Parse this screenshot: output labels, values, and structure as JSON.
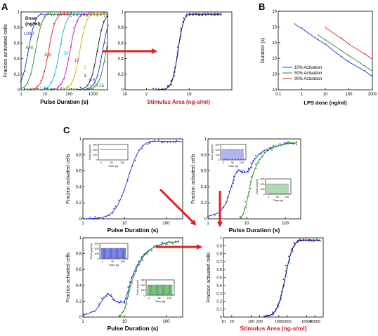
{
  "panel_letters": [
    "A",
    "B",
    "C"
  ],
  "colors": {
    "blue": "#2030c8",
    "green": "#20902a",
    "red": "#e02020",
    "cyan": "#10b8c8",
    "magenta": "#c010c8",
    "yellow": "#c8b400",
    "black": "#111111",
    "navy": "#000080",
    "arrow": "#e02020",
    "axis_red_label": "#d01818"
  },
  "chart_data": [
    {
      "id": "A1",
      "type": "scatter",
      "title": "",
      "xlabel": "Pulse Duration (s)",
      "ylabel": "Fraction activated cells",
      "xscale": "log",
      "xlim": [
        1,
        4000
      ],
      "ylim": [
        0,
        1
      ],
      "xticks": [
        1,
        10,
        100,
        1000
      ],
      "xtick_labels": [
        "1",
        "10",
        "100",
        "1000"
      ],
      "yticks": [
        0,
        0.2,
        0.4,
        0.6,
        0.8,
        1
      ],
      "ytick_labels": [
        "0",
        "0.2",
        "0.4",
        "0.6",
        "0.8",
        "1"
      ],
      "legend_title": "Dose\n(ng/ml)",
      "legend_title_lines": [
        "Dose",
        "(ng/ml)"
      ],
      "series": [
        {
          "name": "1000",
          "color": "#2030c8",
          "x50": 2,
          "slope": 3
        },
        {
          "name": "500",
          "color": "#20902a",
          "x50": 4,
          "slope": 3
        },
        {
          "name": "100",
          "color": "#e02020",
          "x50": 14,
          "slope": 3
        },
        {
          "name": "50",
          "color": "#10b8c8",
          "x50": 40,
          "slope": 3
        },
        {
          "name": "10",
          "color": "#c010c8",
          "x50": 110,
          "slope": 3
        },
        {
          "name": "5",
          "color": "#c8b400",
          "x50": 280,
          "slope": 3
        },
        {
          "name": "1",
          "color": "#111111",
          "x50": 1500,
          "slope": 3
        },
        {
          "name": "0.5",
          "color": "#2030c8",
          "x50": 2500,
          "slope": 3
        },
        {
          "name": "0.25",
          "color": "#20902a",
          "x50": 3500,
          "slope": 3
        }
      ]
    },
    {
      "id": "A2",
      "type": "scatter",
      "title": "",
      "xlabel": "Stimulus Area (ng-s/ml)",
      "ylabel": "",
      "xscale": "log",
      "xlim": [
        10,
        1000000
      ],
      "ylim": [
        0,
        1
      ],
      "xticks": [
        10,
        100,
        10000
      ],
      "xtick_labels": [
        "10",
        "2",
        "10"
      ],
      "yticks": [
        0,
        0.2,
        0.4,
        0.6,
        0.8,
        1
      ],
      "ytick_labels": [
        "0",
        "0.2",
        "0.4",
        "0.6",
        "0.8",
        "1"
      ],
      "collapsed_x50": 3000,
      "collapsed_slope": 3.2
    },
    {
      "id": "B",
      "type": "line",
      "title": "",
      "xlabel": "LPS dose (ng/ml)",
      "ylabel": "Duration (s)",
      "xscale": "log",
      "yscale": "log",
      "xlim": [
        0.1,
        1000
      ],
      "ylim": [
        0.1,
        10000
      ],
      "xticks": [
        0.1,
        1,
        10,
        100,
        1000
      ],
      "xtick_labels": [
        "0.1",
        "1",
        "10",
        "100",
        "1000"
      ],
      "yticks": [
        0.1,
        1,
        10,
        100,
        1000,
        10000
      ],
      "ytick_labels": [
        "10",
        "10",
        "10",
        "10",
        "10",
        "10"
      ],
      "series": [
        {
          "name": "10% Activation",
          "color": "#2030c8",
          "x": [
            0.5,
            1,
            5,
            10,
            50,
            100,
            500,
            1000
          ],
          "y": [
            1500,
            800,
            150,
            80,
            12,
            6,
            1.5,
            0.7
          ]
        },
        {
          "name": "50% Activation",
          "color": "#20902a",
          "x": [
            5,
            10,
            50,
            100,
            500,
            1000
          ],
          "y": [
            300,
            150,
            30,
            15,
            3,
            1.6
          ]
        },
        {
          "name": "90% Activation",
          "color": "#e02020",
          "x": [
            10,
            50,
            100,
            500,
            1000
          ],
          "y": [
            900,
            180,
            80,
            18,
            9
          ]
        }
      ],
      "legend_position": "bottom-left"
    },
    {
      "id": "C1",
      "type": "scatter",
      "title": "",
      "xlabel": "Pulse Duration (s)",
      "ylabel": "Fraction activated cells",
      "xscale": "log",
      "xlim": [
        1,
        250
      ],
      "ylim": [
        0,
        1
      ],
      "xticks": [
        1,
        10,
        100
      ],
      "xtick_labels": [
        "1",
        "10",
        "100"
      ],
      "yticks": [
        0,
        0.2,
        0.4,
        0.6,
        0.8,
        1
      ],
      "ytick_labels": [
        "0",
        "0.2",
        "0.4",
        "0.6",
        "0.8",
        "1"
      ],
      "series": [
        {
          "name": "",
          "color": "#2030c8",
          "x50": 12,
          "slope": 2.8
        }
      ],
      "inset": {
        "ylabel": "Dose (ng/ml)",
        "xlabel": "Time (s)",
        "yticks": [
          "0",
          "100",
          "200",
          "300"
        ],
        "xticks": [
          "0",
          "50",
          "100"
        ],
        "signal": "constant",
        "color": "#20902a"
      }
    },
    {
      "id": "C2",
      "type": "scatter",
      "title": "",
      "xlabel": "Pulse Duration (s)",
      "ylabel": "Fraction activated cells",
      "xscale": "log",
      "xlim": [
        1,
        250
      ],
      "ylim": [
        0,
        1
      ],
      "xticks": [
        1,
        10,
        100
      ],
      "xtick_labels": [
        "1",
        "10",
        "100"
      ],
      "yticks": [
        0,
        0.2,
        0.4,
        0.6,
        0.8,
        1
      ],
      "ytick_labels": [
        "0",
        "0.2",
        "0.4",
        "0.6",
        "0.8",
        "1"
      ],
      "series": [
        {
          "name": "",
          "color": "#2030c8",
          "shape": "two-phase",
          "x": [
            1,
            2,
            3,
            4,
            5,
            6,
            7,
            8,
            10,
            12,
            15,
            20,
            30,
            50,
            80,
            120,
            200
          ],
          "y": [
            0.03,
            0.08,
            0.2,
            0.4,
            0.55,
            0.6,
            0.6,
            0.58,
            0.58,
            0.62,
            0.72,
            0.8,
            0.86,
            0.9,
            0.93,
            0.94,
            0.95
          ]
        },
        {
          "name": "",
          "color": "#20902a",
          "x": [
            7,
            8,
            10,
            12,
            15,
            20,
            30,
            50,
            80,
            120,
            200
          ],
          "y": [
            0.01,
            0.05,
            0.2,
            0.4,
            0.58,
            0.72,
            0.83,
            0.9,
            0.93,
            0.95,
            0.95
          ]
        }
      ],
      "insets": [
        {
          "ylabel": "Dose (ng/ml)",
          "xlabel": "Time (s)",
          "yticks": [
            "0",
            "100",
            "200",
            "300"
          ],
          "xticks": [
            "0",
            "50",
            "100"
          ],
          "signal": "square-wave-slow",
          "color": "#2030c8"
        },
        {
          "ylabel": "Dose (ng/ml)",
          "xlabel": "Time (s)",
          "yticks": [
            "0",
            "100",
            "200",
            "300"
          ],
          "xticks": [
            "0",
            "50",
            "100"
          ],
          "signal": "square-wave-slow",
          "color": "#20902a"
        }
      ]
    },
    {
      "id": "C3",
      "type": "scatter",
      "title": "",
      "xlabel": "Pulse Duration (s)",
      "ylabel": "Fraction activated cells",
      "xscale": "log",
      "xlim": [
        1,
        250
      ],
      "ylim": [
        0,
        1
      ],
      "xticks": [
        1,
        10,
        100
      ],
      "xtick_labels": [
        "1",
        "10",
        "100"
      ],
      "yticks": [
        0,
        0.2,
        0.4,
        0.6,
        0.8,
        1
      ],
      "ytick_labels": [
        "0",
        "0.2",
        "0.4",
        "0.6",
        "0.8",
        "1"
      ],
      "series": [
        {
          "name": "",
          "color": "#2030c8",
          "x": [
            1,
            2,
            3,
            4,
            5,
            6,
            8,
            10,
            12,
            15,
            20,
            30,
            50,
            80,
            120,
            200
          ],
          "y": [
            0.02,
            0.08,
            0.22,
            0.3,
            0.25,
            0.2,
            0.18,
            0.2,
            0.32,
            0.5,
            0.65,
            0.8,
            0.88,
            0.92,
            0.94,
            0.95
          ]
        },
        {
          "name": "",
          "color": "#20902a",
          "x": [
            7,
            8,
            10,
            12,
            15,
            20,
            30,
            50,
            80,
            120,
            200
          ],
          "y": [
            0.0,
            0.02,
            0.1,
            0.25,
            0.45,
            0.62,
            0.78,
            0.88,
            0.92,
            0.94,
            0.95
          ]
        }
      ],
      "insets": [
        {
          "ylabel": "Dose (ng/ml)",
          "xlabel": "Time (s)",
          "yticks": [
            "0",
            "100",
            "200",
            "300"
          ],
          "xticks": [
            "0",
            "50",
            "100"
          ],
          "signal": "square-wave-fast",
          "color": "#2030c8"
        },
        {
          "ylabel": "Dose (ng/ml)",
          "xlabel": "Time (s)",
          "yticks": [
            "0",
            "100",
            "200",
            "300"
          ],
          "xticks": [
            "0",
            "50",
            "100"
          ],
          "signal": "square-wave-fast",
          "color": "#20902a"
        }
      ]
    },
    {
      "id": "C4",
      "type": "scatter",
      "title": "",
      "xlabel": "Stimulus Area (ng-s/ml)",
      "ylabel": "Fraction activated cells",
      "xscale": "log",
      "xlim": [
        10,
        40000
      ],
      "ylim": [
        0,
        1
      ],
      "xticks": [
        10,
        20,
        100,
        200,
        1000,
        2000,
        10000,
        20000
      ],
      "xtick_labels": [
        "10",
        "20",
        "100",
        "200",
        "1000",
        "2000",
        "10000",
        "20000"
      ],
      "yticks": [
        0,
        0.1,
        0.2,
        0.3,
        0.4,
        0.5,
        0.6,
        0.7,
        0.8,
        0.9,
        1
      ],
      "ytick_labels": [
        "0",
        "0.1",
        "0.2",
        "0.3",
        "0.4",
        "0.5",
        "0.6",
        "0.7",
        "0.8",
        "0.9",
        "1"
      ],
      "collapsed_x50": 1700,
      "collapsed_slope": 3.0
    }
  ]
}
